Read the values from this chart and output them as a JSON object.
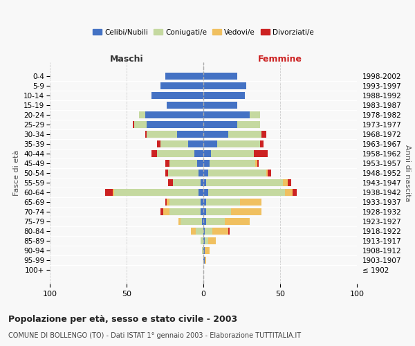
{
  "age_groups": [
    "100+",
    "95-99",
    "90-94",
    "85-89",
    "80-84",
    "75-79",
    "70-74",
    "65-69",
    "60-64",
    "55-59",
    "50-54",
    "45-49",
    "40-44",
    "35-39",
    "30-34",
    "25-29",
    "20-24",
    "15-19",
    "10-14",
    "5-9",
    "0-4"
  ],
  "birth_years": [
    "≤ 1902",
    "1903-1907",
    "1908-1912",
    "1913-1917",
    "1918-1922",
    "1923-1927",
    "1928-1932",
    "1933-1937",
    "1938-1942",
    "1943-1947",
    "1948-1952",
    "1953-1957",
    "1958-1962",
    "1963-1967",
    "1968-1972",
    "1973-1977",
    "1978-1982",
    "1983-1987",
    "1988-1992",
    "1993-1997",
    "1998-2002"
  ],
  "male": {
    "celibi": [
      0,
      0,
      0,
      0,
      0,
      1,
      2,
      2,
      3,
      2,
      3,
      4,
      6,
      10,
      17,
      37,
      38,
      24,
      34,
      28,
      25
    ],
    "coniugati": [
      0,
      0,
      1,
      2,
      5,
      14,
      20,
      20,
      55,
      18,
      20,
      18,
      24,
      18,
      20,
      8,
      4,
      0,
      0,
      0,
      0
    ],
    "vedovi": [
      0,
      0,
      0,
      0,
      3,
      1,
      4,
      2,
      1,
      0,
      0,
      0,
      0,
      0,
      0,
      0,
      0,
      0,
      0,
      0,
      0
    ],
    "divorziati": [
      0,
      0,
      0,
      0,
      0,
      0,
      2,
      1,
      5,
      3,
      2,
      3,
      4,
      2,
      1,
      1,
      0,
      0,
      0,
      0,
      0
    ]
  },
  "female": {
    "nubili": [
      0,
      1,
      1,
      1,
      1,
      2,
      2,
      2,
      3,
      2,
      3,
      4,
      5,
      9,
      16,
      22,
      30,
      22,
      27,
      28,
      22
    ],
    "coniugate": [
      0,
      0,
      0,
      2,
      5,
      12,
      16,
      22,
      50,
      50,
      38,
      30,
      28,
      28,
      22,
      15,
      7,
      0,
      0,
      0,
      0
    ],
    "vedove": [
      0,
      1,
      3,
      5,
      10,
      16,
      20,
      14,
      5,
      3,
      1,
      1,
      0,
      0,
      0,
      0,
      0,
      0,
      0,
      0,
      0
    ],
    "divorziate": [
      0,
      0,
      0,
      0,
      1,
      0,
      0,
      0,
      3,
      2,
      2,
      1,
      9,
      2,
      3,
      0,
      0,
      0,
      0,
      0,
      0
    ]
  },
  "colors": {
    "celibi": "#4472c4",
    "coniugati": "#c5d9a0",
    "vedovi": "#f0c060",
    "divorziati": "#cc2222"
  },
  "title": "Popolazione per età, sesso e stato civile - 2003",
  "subtitle": "COMUNE DI BOLLENGO (TO) - Dati ISTAT 1° gennaio 2003 - Elaborazione TUTTITALIA.IT",
  "xlabel_left": "Maschi",
  "xlabel_right": "Femmine",
  "ylabel_left": "Fasce di età",
  "ylabel_right": "Anni di nascita",
  "xlim": 100,
  "bg_color": "#f8f8f8",
  "grid_color": "#cccccc"
}
